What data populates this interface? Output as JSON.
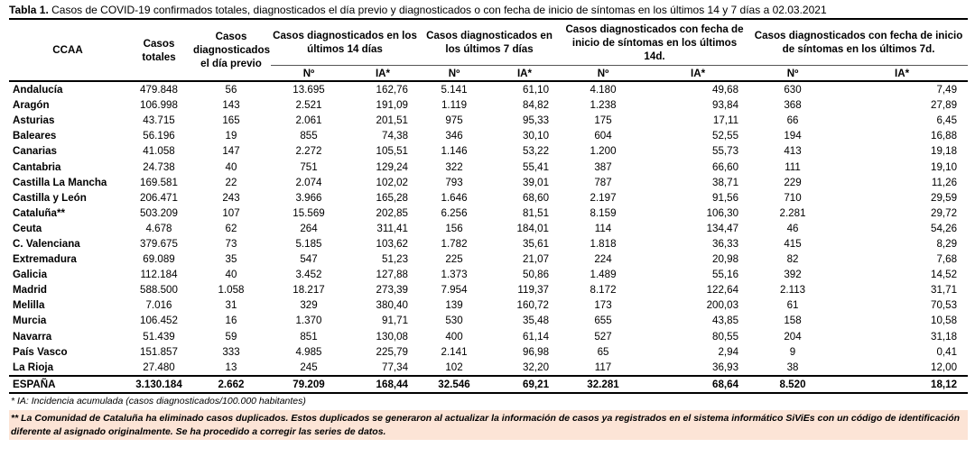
{
  "caption": {
    "label": "Tabla 1.",
    "text": " Casos de COVID-19 confirmados totales, diagnosticados el día previo y diagnosticados o con fecha de inicio de síntomas en los últimos 14 y 7 días a 02.03.2021"
  },
  "headers": {
    "ccaa": "CCAA",
    "totales": "Casos totales",
    "previo": "Casos diagnosticados el día previo",
    "d14": "Casos diagnosticados en los últimos 14 días",
    "d7": "Casos diagnosticados en los últimos 7 días",
    "s14": "Casos diagnosticados con fecha de inicio de síntomas en los últimos 14d.",
    "s7": "Casos diagnosticados con fecha de inicio de síntomas en los últimos 7d.",
    "n": "Nº",
    "ia": "IA*"
  },
  "rows": [
    [
      "Andalucía",
      "479.848",
      "56",
      "13.695",
      "162,76",
      "5.141",
      "61,10",
      "4.180",
      "49,68",
      "630",
      "7,49"
    ],
    [
      "Aragón",
      "106.998",
      "143",
      "2.521",
      "191,09",
      "1.119",
      "84,82",
      "1.238",
      "93,84",
      "368",
      "27,89"
    ],
    [
      "Asturias",
      "43.715",
      "165",
      "2.061",
      "201,51",
      "975",
      "95,33",
      "175",
      "17,11",
      "66",
      "6,45"
    ],
    [
      "Baleares",
      "56.196",
      "19",
      "855",
      "74,38",
      "346",
      "30,10",
      "604",
      "52,55",
      "194",
      "16,88"
    ],
    [
      "Canarias",
      "41.058",
      "147",
      "2.272",
      "105,51",
      "1.146",
      "53,22",
      "1.200",
      "55,73",
      "413",
      "19,18"
    ],
    [
      "Cantabria",
      "24.738",
      "40",
      "751",
      "129,24",
      "322",
      "55,41",
      "387",
      "66,60",
      "111",
      "19,10"
    ],
    [
      "Castilla La Mancha",
      "169.581",
      "22",
      "2.074",
      "102,02",
      "793",
      "39,01",
      "787",
      "38,71",
      "229",
      "11,26"
    ],
    [
      "Castilla y León",
      "206.471",
      "243",
      "3.966",
      "165,28",
      "1.646",
      "68,60",
      "2.197",
      "91,56",
      "710",
      "29,59"
    ],
    [
      "Cataluña**",
      "503.209",
      "107",
      "15.569",
      "202,85",
      "6.256",
      "81,51",
      "8.159",
      "106,30",
      "2.281",
      "29,72"
    ],
    [
      "Ceuta",
      "4.678",
      "62",
      "264",
      "311,41",
      "156",
      "184,01",
      "114",
      "134,47",
      "46",
      "54,26"
    ],
    [
      "C. Valenciana",
      "379.675",
      "73",
      "5.185",
      "103,62",
      "1.782",
      "35,61",
      "1.818",
      "36,33",
      "415",
      "8,29"
    ],
    [
      "Extremadura",
      "69.089",
      "35",
      "547",
      "51,23",
      "225",
      "21,07",
      "224",
      "20,98",
      "82",
      "7,68"
    ],
    [
      "Galicia",
      "112.184",
      "40",
      "3.452",
      "127,88",
      "1.373",
      "50,86",
      "1.489",
      "55,16",
      "392",
      "14,52"
    ],
    [
      "Madrid",
      "588.500",
      "1.058",
      "18.217",
      "273,39",
      "7.954",
      "119,37",
      "8.172",
      "122,64",
      "2.113",
      "31,71"
    ],
    [
      "Melilla",
      "7.016",
      "31",
      "329",
      "380,40",
      "139",
      "160,72",
      "173",
      "200,03",
      "61",
      "70,53"
    ],
    [
      "Murcia",
      "106.452",
      "16",
      "1.370",
      "91,71",
      "530",
      "35,48",
      "655",
      "43,85",
      "158",
      "10,58"
    ],
    [
      "Navarra",
      "51.439",
      "59",
      "851",
      "130,08",
      "400",
      "61,14",
      "527",
      "80,55",
      "204",
      "31,18"
    ],
    [
      "País Vasco",
      "151.857",
      "333",
      "4.985",
      "225,79",
      "2.141",
      "96,98",
      "65",
      "2,94",
      "9",
      "0,41"
    ],
    [
      "La Rioja",
      "27.480",
      "13",
      "245",
      "77,34",
      "102",
      "32,20",
      "117",
      "36,93",
      "38",
      "12,00"
    ]
  ],
  "total": [
    "ESPAÑA",
    "3.130.184",
    "2.662",
    "79.209",
    "168,44",
    "32.546",
    "69,21",
    "32.281",
    "68,64",
    "8.520",
    "18,12"
  ],
  "notes": {
    "ia": "* IA: Incidencia acumulada (casos diagnosticados/100.000 habitantes)",
    "cataluna": "** La Comunidad de Cataluña ha eliminado casos duplicados. Estos duplicados se generaron al actualizar la  información de casos ya registrados en el sistema informático SiViEs con un código de identificación diferente al asignado originalmente. Se ha procedido a corregir las series de datos."
  },
  "colors": {
    "note_highlight": "#fce4d6"
  }
}
